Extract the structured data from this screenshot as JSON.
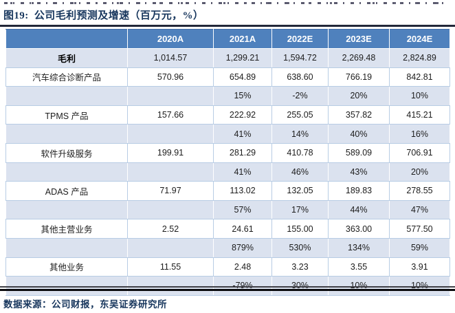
{
  "title": "图19:  公司毛利预测及增速（百万元，%）",
  "source": "数据来源：公司财报，东吴证券研究所",
  "colors": {
    "header_bg": "#4F81BD",
    "band_row_bg": "#DBE2EF",
    "grid_line": "#B7CCE4",
    "title_text": "#17365D",
    "header_text": "#FFFFFF",
    "top_rule": "#222738",
    "bottom_rule": "#0B0B0E"
  },
  "chart_data": {
    "type": "table",
    "title": "公司毛利预测及增速（百万元，%）",
    "columns": [
      "",
      "2020A",
      "2021A",
      "2022E",
      "2023E",
      "2024E"
    ],
    "rows": [
      {
        "label": "毛利",
        "bold": true,
        "band": true,
        "values": [
          "1,014.57",
          "1,299.21",
          "1,594.72",
          "2,269.48",
          "2,824.89"
        ]
      },
      {
        "label": "汽车综合诊断产品",
        "band": false,
        "values": [
          "570.96",
          "654.89",
          "638.60",
          "766.19",
          "842.81"
        ]
      },
      {
        "label": "",
        "band": true,
        "values": [
          "",
          "15%",
          "-2%",
          "20%",
          "10%"
        ]
      },
      {
        "label": "TPMS 产品",
        "band": false,
        "values": [
          "157.66",
          "222.92",
          "255.05",
          "357.82",
          "415.21"
        ]
      },
      {
        "label": "",
        "band": true,
        "values": [
          "",
          "41%",
          "14%",
          "40%",
          "16%"
        ]
      },
      {
        "label": "软件升级服务",
        "band": false,
        "values": [
          "199.91",
          "281.29",
          "410.78",
          "589.09",
          "706.91"
        ]
      },
      {
        "label": "",
        "band": true,
        "values": [
          "",
          "41%",
          "46%",
          "43%",
          "20%"
        ]
      },
      {
        "label": "ADAS 产品",
        "band": false,
        "values": [
          "71.97",
          "113.02",
          "132.05",
          "189.83",
          "278.55"
        ]
      },
      {
        "label": "",
        "band": true,
        "values": [
          "",
          "57%",
          "17%",
          "44%",
          "47%"
        ]
      },
      {
        "label": "其他主营业务",
        "band": false,
        "values": [
          "2.52",
          "24.61",
          "155.00",
          "363.00",
          "577.50"
        ]
      },
      {
        "label": "",
        "band": true,
        "values": [
          "",
          "879%",
          "530%",
          "134%",
          "59%"
        ]
      },
      {
        "label": "其他业务",
        "band": false,
        "values": [
          "11.55",
          "2.48",
          "3.23",
          "3.55",
          "3.91"
        ]
      },
      {
        "label": "",
        "band": true,
        "values": [
          "",
          "-79%",
          "30%",
          "10%",
          "10%"
        ]
      }
    ]
  }
}
